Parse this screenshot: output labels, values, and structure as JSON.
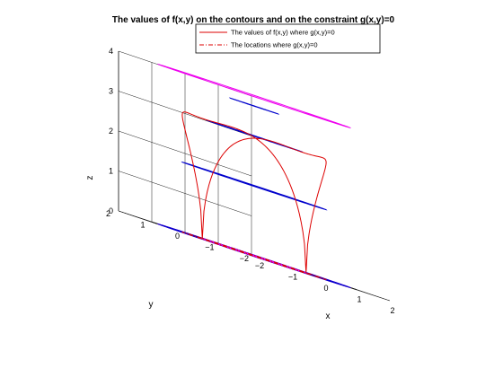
{
  "chart_data": {
    "type": "line",
    "projection": "3d",
    "title": "The values of f(x,y) on the contours and on the constraint g(x,y)=0",
    "xlabel": "x",
    "ylabel": "y",
    "zlabel": "z",
    "xlim": [
      -2,
      2
    ],
    "ylim": [
      -2,
      2
    ],
    "zlim": [
      0,
      4
    ],
    "x_ticks": [
      "−2",
      "−1",
      "0",
      "1",
      "2"
    ],
    "y_ticks": [
      "−2",
      "−1",
      "0",
      "1",
      "2"
    ],
    "z_ticks": [
      "0",
      "1",
      "2",
      "3",
      "4"
    ],
    "grid": true,
    "legend": {
      "placement": "top",
      "entries": [
        {
          "label": "The values of f(x,y) where g(x,y)=0",
          "color": "#dd0000",
          "style": "solid"
        },
        {
          "label": "The locations where g(x,y)=0",
          "color": "#dd0000",
          "style": "dashdot"
        }
      ]
    },
    "surface": "z = 4 - x^2 - y^2",
    "contours": [
      {
        "level": 4.0,
        "radius": 0.0,
        "color": "#0000cc"
      },
      {
        "level": 3.75,
        "radius": 0.5,
        "color": "#0000cc"
      },
      {
        "level": 3.0,
        "radius": 1.0,
        "color": "#0000cc"
      },
      {
        "level": 1.75,
        "radius": 1.5,
        "color": "#0000cc"
      },
      {
        "level": 0.0,
        "radius": 2.0,
        "color": "#0000cc"
      }
    ],
    "constraint_circle": {
      "center": [
        0,
        0
      ],
      "radius": 1.0
    },
    "highlight_contours": [
      {
        "level": 4.0,
        "color": "#ee00ee"
      },
      {
        "level": 0.0,
        "color": "#ee00ee"
      }
    ]
  }
}
